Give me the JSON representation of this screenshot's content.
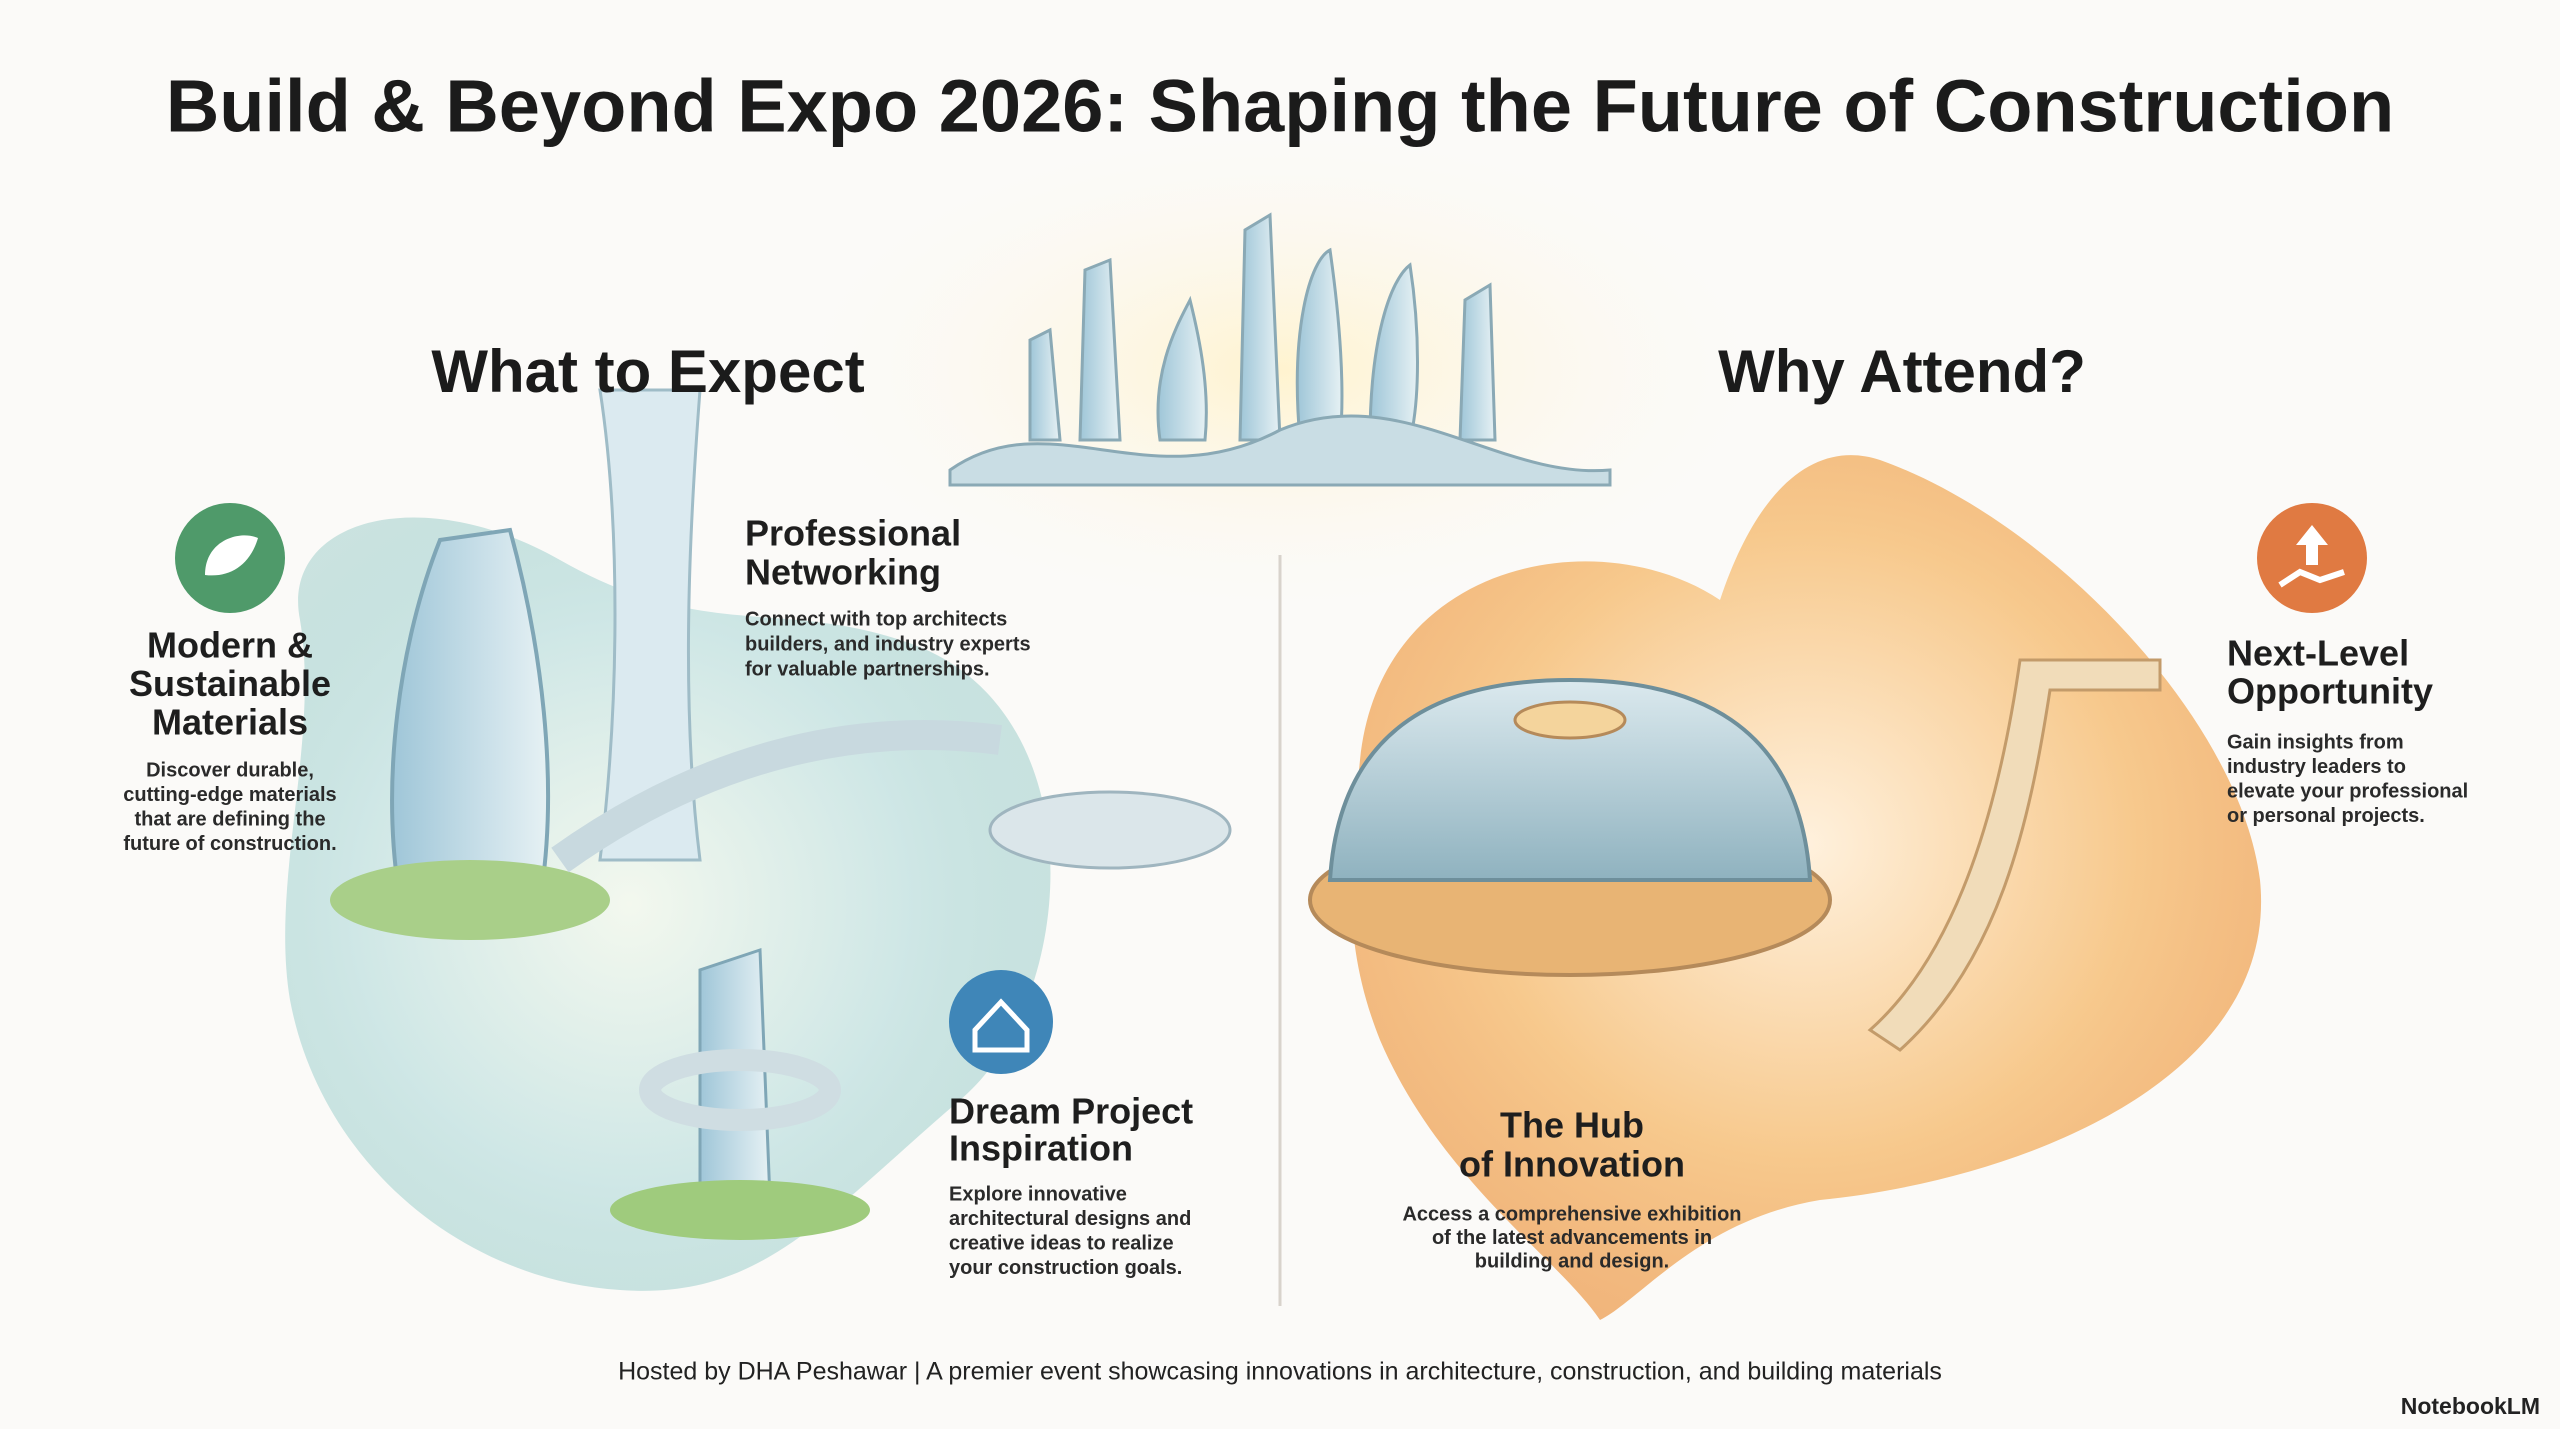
{
  "header": {
    "title": "Build & Beyond Expo 2026: Shaping the Future of Construction"
  },
  "what_to_expect": {
    "heading": "What to Expect",
    "items": [
      {
        "title": [
          "Modern &",
          "Sustainable",
          "Materials"
        ],
        "description": [
          "Discover durable,",
          "cutting-edge materials",
          "that are defining the",
          "future of construction."
        ]
      },
      {
        "title": [
          "Professional",
          "Networking"
        ],
        "description": [
          "Connect with top architects",
          "builders, and industry experts",
          "for valuable partnerships."
        ]
      },
      {
        "title": [
          "Dream Project",
          "Inspiration"
        ],
        "description": [
          "Explore innovative",
          "architectural designs and",
          "creative ideas to realize",
          "your construction goals."
        ]
      }
    ]
  },
  "why_attend": {
    "heading": "Why Attend?",
    "items": [
      {
        "title": [
          "Next-Level",
          "Opportunity"
        ],
        "description": [
          "Gain insights from",
          "industry leaders to",
          "elevate your professional",
          "or personal projects."
        ]
      },
      {
        "title": [
          "The Hub",
          "of Innovation"
        ],
        "description": [
          "Access a comprehensive exhibition",
          "of the latest advancements in",
          "building and design."
        ]
      }
    ]
  },
  "footer": {
    "text": "Hosted by DHA Peshawar | A premier event showcasing innovations in architecture, construction, and building materials"
  },
  "brand": {
    "name": "NotebookLM"
  }
}
